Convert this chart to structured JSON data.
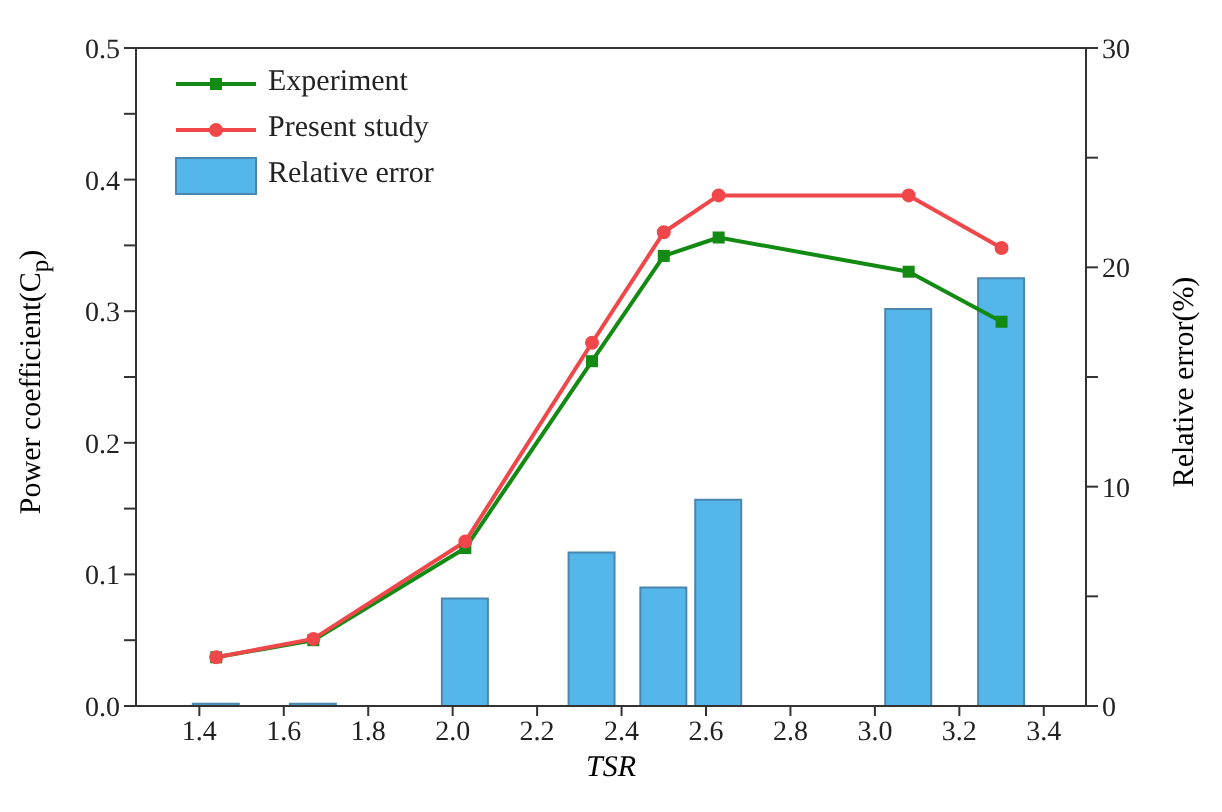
{
  "chart_data": {
    "type": "line",
    "xlabel": "TSR",
    "ylabel": "Power coefficient(C$_{p}$)",
    "y2label": "Relative error(%)",
    "x": [
      1.44,
      1.67,
      2.03,
      2.33,
      2.5,
      2.63,
      3.08,
      3.3
    ],
    "series": [
      {
        "name": "Experiment",
        "color": "#138a13",
        "marker": "square",
        "values": [
          0.037,
          0.05,
          0.12,
          0.262,
          0.342,
          0.356,
          0.33,
          0.292
        ]
      },
      {
        "name": "Present study",
        "color": "#f0474a",
        "marker": "circle",
        "values": [
          0.037,
          0.051,
          0.125,
          0.276,
          0.36,
          0.388,
          0.388,
          0.348
        ]
      },
      {
        "name": "Relative error",
        "type": "bar",
        "axis": "y2",
        "color": "#55b6ea",
        "values": [
          0.1,
          0.1,
          4.9,
          7.0,
          5.4,
          9.4,
          18.1,
          19.5
        ]
      }
    ],
    "xlim": [
      1.25,
      3.5
    ],
    "xticks": [
      1.4,
      1.6,
      1.8,
      {
        "value": 2,
        "label": "2.0"
      },
      2.2,
      2.4,
      2.6,
      2.8,
      {
        "value": 3,
        "label": "3.0"
      },
      3.2,
      3.4
    ],
    "ylim": [
      0,
      0.5
    ],
    "yticks": [
      {
        "value": 0,
        "label": "0.0"
      },
      {
        "value": 0.05,
        "label": null
      },
      0.1,
      {
        "value": 0.15,
        "label": null
      },
      0.2,
      {
        "value": 0.25,
        "label": null
      },
      0.3,
      {
        "value": 0.35,
        "label": null
      },
      0.4,
      {
        "value": 0.45,
        "label": null
      },
      0.5
    ],
    "y2lim": [
      0,
      30
    ],
    "y2ticks": [
      0,
      {
        "value": 5,
        "label": null
      },
      10,
      {
        "value": 15,
        "label": null
      },
      20,
      {
        "value": 25,
        "label": null
      },
      30
    ],
    "grid": false,
    "legend": "top left",
    "line_style": "solid"
  }
}
